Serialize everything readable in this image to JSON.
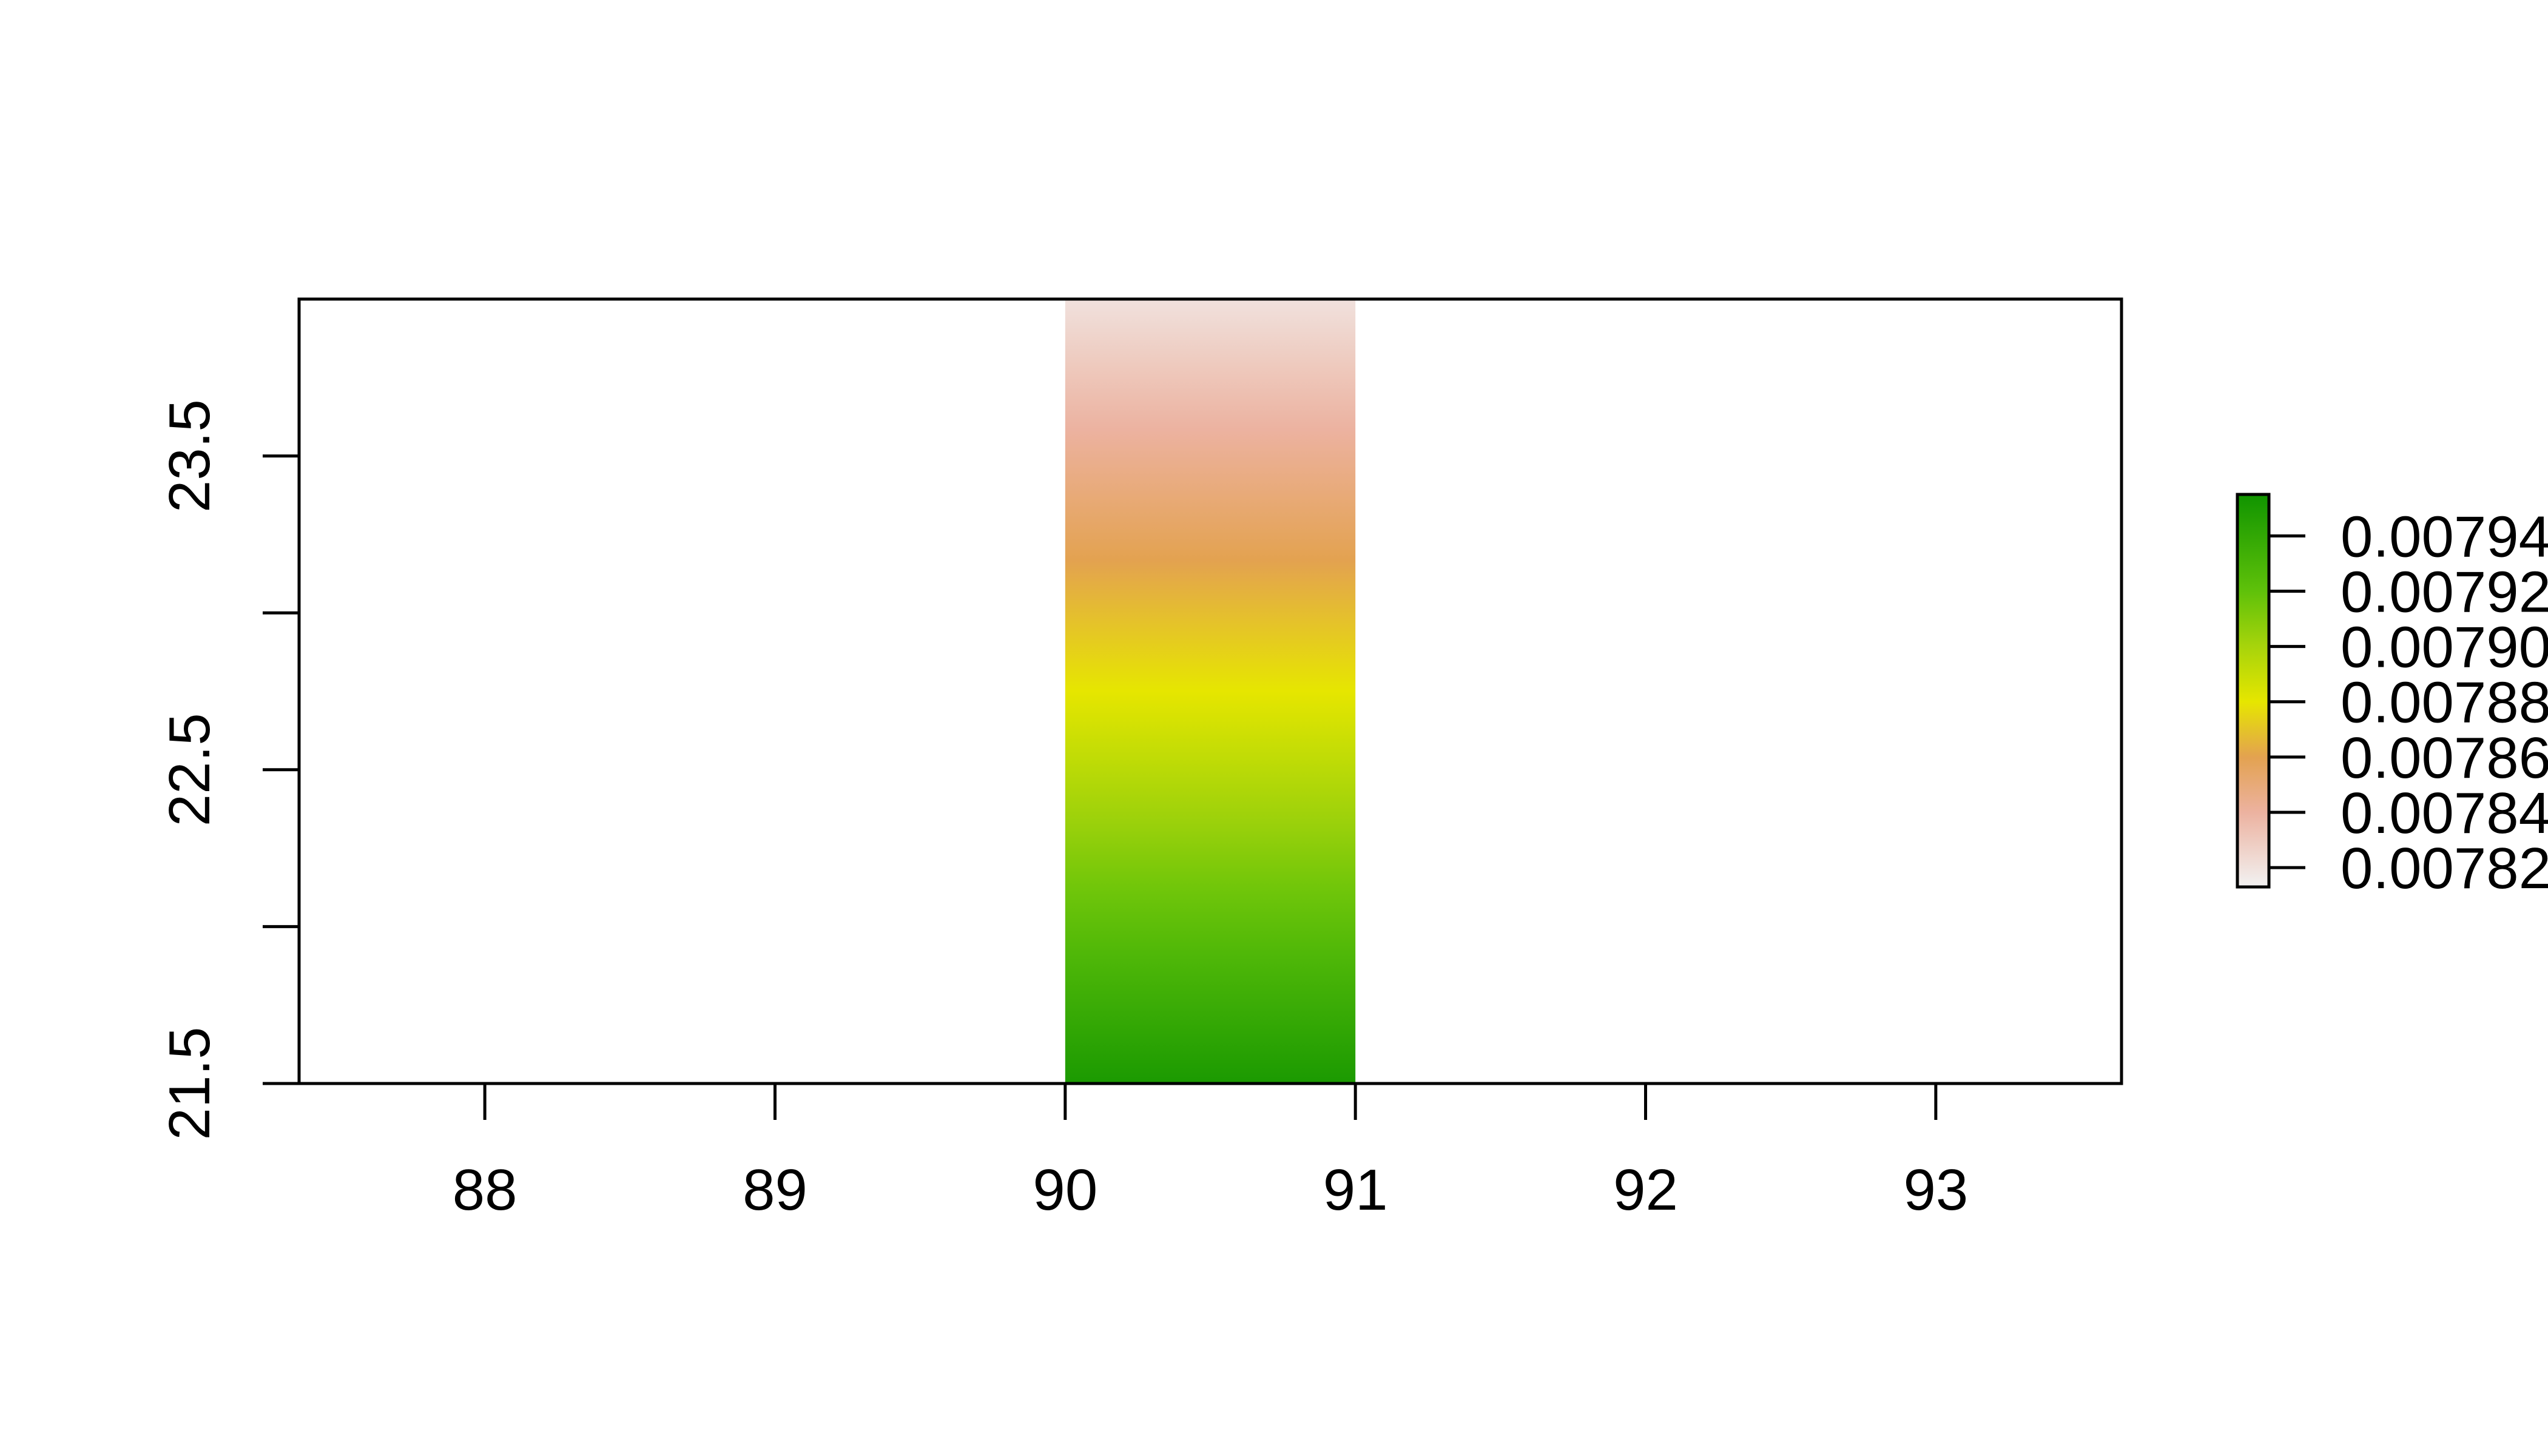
{
  "chart_data": {
    "type": "heatmap",
    "title": "",
    "xlabel": "",
    "ylabel": "",
    "xlim": [
      87.36,
      93.64
    ],
    "ylim": [
      21.5,
      24.0
    ],
    "x_ticks": [
      "88",
      "89",
      "90",
      "91",
      "92",
      "93"
    ],
    "x_tick_values": [
      88,
      89,
      90,
      91,
      92,
      93
    ],
    "y_ticks": [
      "21.5",
      "22.5",
      "23.5"
    ],
    "y_tick_values": [
      21.5,
      22.5,
      23.5
    ],
    "y_minor_tick_values": [
      22.0,
      23.0
    ],
    "cell": {
      "x_range": [
        90,
        91
      ],
      "y_range": [
        21.5,
        24.0
      ]
    },
    "value_gradient": [
      {
        "y": 21.5,
        "value": 0.00795
      },
      {
        "y": 22.75,
        "value": 0.00788
      },
      {
        "y": 24.0,
        "value": 0.00782
      }
    ],
    "legend": {
      "placement": "right",
      "range": [
        0.007813,
        0.007955
      ],
      "tick_values": [
        0.00782,
        0.00784,
        0.00786,
        0.00788,
        0.0079,
        0.00792,
        0.00794
      ],
      "tick_labels": [
        "0.00782",
        "0.00784",
        "0.00786",
        "0.00788",
        "0.00790",
        "0.00792",
        "0.00794"
      ],
      "color_stops": [
        {
          "value": 0.007813,
          "color": "#f2f2f2"
        },
        {
          "value": 0.00784,
          "color": "#ecb2a0"
        },
        {
          "value": 0.00786,
          "color": "#e3a250"
        },
        {
          "value": 0.00788,
          "color": "#e6e600"
        },
        {
          "value": 0.0079,
          "color": "#a7d40b"
        },
        {
          "value": 0.00792,
          "color": "#5fc10a"
        },
        {
          "value": 0.007955,
          "color": "#109400"
        }
      ]
    }
  }
}
